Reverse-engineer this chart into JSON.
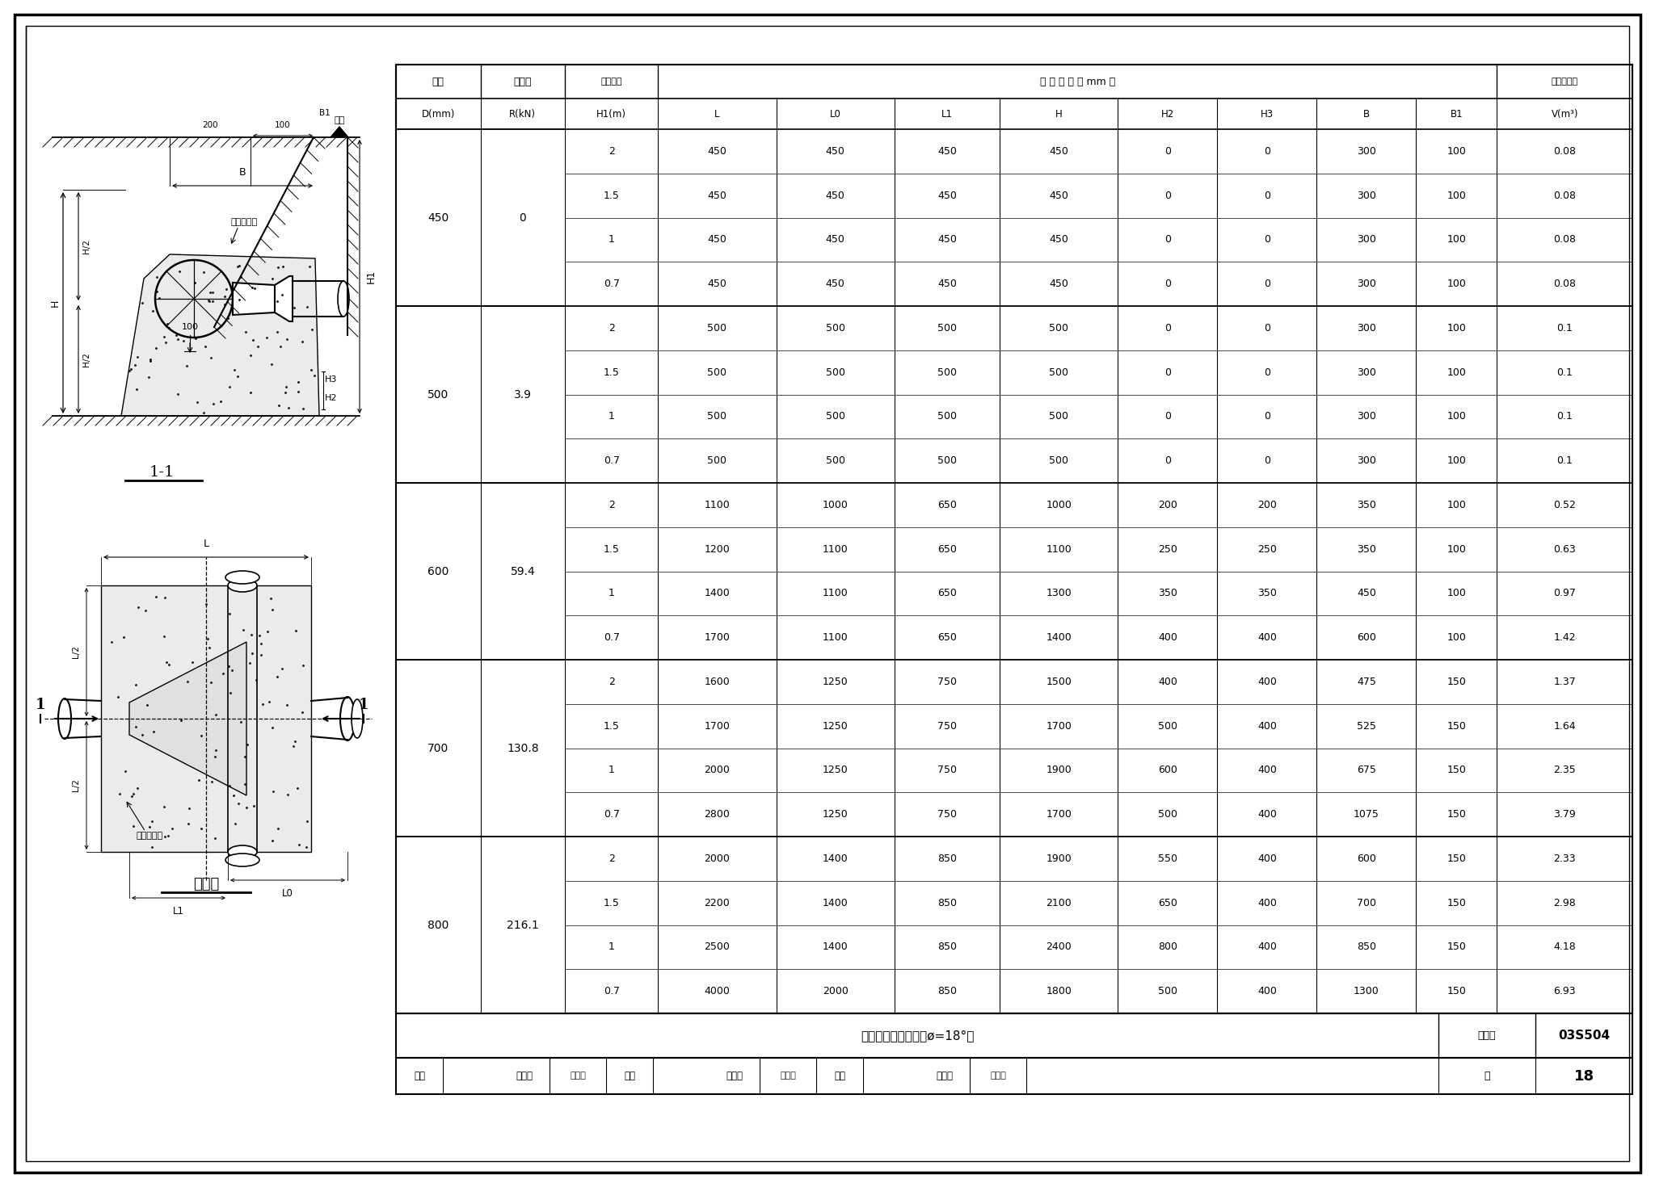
{
  "title": "水平三通管支墩图（ø=18°）",
  "collection_no": "03S504",
  "page": "18",
  "table_data": [
    [
      "450",
      "0",
      "2",
      "450",
      "450",
      "450",
      "450",
      "0",
      "0",
      "300",
      "100",
      "0.08"
    ],
    [
      "",
      "",
      "1.5",
      "450",
      "450",
      "450",
      "450",
      "0",
      "0",
      "300",
      "100",
      "0.08"
    ],
    [
      "",
      "",
      "1",
      "450",
      "450",
      "450",
      "450",
      "0",
      "0",
      "300",
      "100",
      "0.08"
    ],
    [
      "",
      "",
      "0.7",
      "450",
      "450",
      "450",
      "450",
      "0",
      "0",
      "300",
      "100",
      "0.08"
    ],
    [
      "500",
      "3.9",
      "2",
      "500",
      "500",
      "500",
      "500",
      "0",
      "0",
      "300",
      "100",
      "0.1"
    ],
    [
      "",
      "",
      "1.5",
      "500",
      "500",
      "500",
      "500",
      "0",
      "0",
      "300",
      "100",
      "0.1"
    ],
    [
      "",
      "",
      "1",
      "500",
      "500",
      "500",
      "500",
      "0",
      "0",
      "300",
      "100",
      "0.1"
    ],
    [
      "",
      "",
      "0.7",
      "500",
      "500",
      "500",
      "500",
      "0",
      "0",
      "300",
      "100",
      "0.1"
    ],
    [
      "600",
      "59.4",
      "2",
      "1100",
      "1000",
      "650",
      "1000",
      "200",
      "200",
      "350",
      "100",
      "0.52"
    ],
    [
      "",
      "",
      "1.5",
      "1200",
      "1100",
      "650",
      "1100",
      "250",
      "250",
      "350",
      "100",
      "0.63"
    ],
    [
      "",
      "",
      "1",
      "1400",
      "1100",
      "650",
      "1300",
      "350",
      "350",
      "450",
      "100",
      "0.97"
    ],
    [
      "",
      "",
      "0.7",
      "1700",
      "1100",
      "650",
      "1400",
      "400",
      "400",
      "600",
      "100",
      "1.42"
    ],
    [
      "700",
      "130.8",
      "2",
      "1600",
      "1250",
      "750",
      "1500",
      "400",
      "400",
      "475",
      "150",
      "1.37"
    ],
    [
      "",
      "",
      "1.5",
      "1700",
      "1250",
      "750",
      "1700",
      "500",
      "400",
      "525",
      "150",
      "1.64"
    ],
    [
      "",
      "",
      "1",
      "2000",
      "1250",
      "750",
      "1900",
      "600",
      "400",
      "675",
      "150",
      "2.35"
    ],
    [
      "",
      "",
      "0.7",
      "2800",
      "1250",
      "750",
      "1700",
      "500",
      "400",
      "1075",
      "150",
      "3.79"
    ],
    [
      "800",
      "216.1",
      "2",
      "2000",
      "1400",
      "850",
      "1900",
      "550",
      "400",
      "600",
      "150",
      "2.33"
    ],
    [
      "",
      "",
      "1.5",
      "2200",
      "1400",
      "850",
      "2100",
      "650",
      "400",
      "700",
      "150",
      "2.98"
    ],
    [
      "",
      "",
      "1",
      "2500",
      "1400",
      "850",
      "2400",
      "800",
      "400",
      "850",
      "150",
      "4.18"
    ],
    [
      "",
      "",
      "0.7",
      "4000",
      "2000",
      "850",
      "1800",
      "500",
      "400",
      "1300",
      "150",
      "6.93"
    ]
  ],
  "bg": "#ffffff"
}
